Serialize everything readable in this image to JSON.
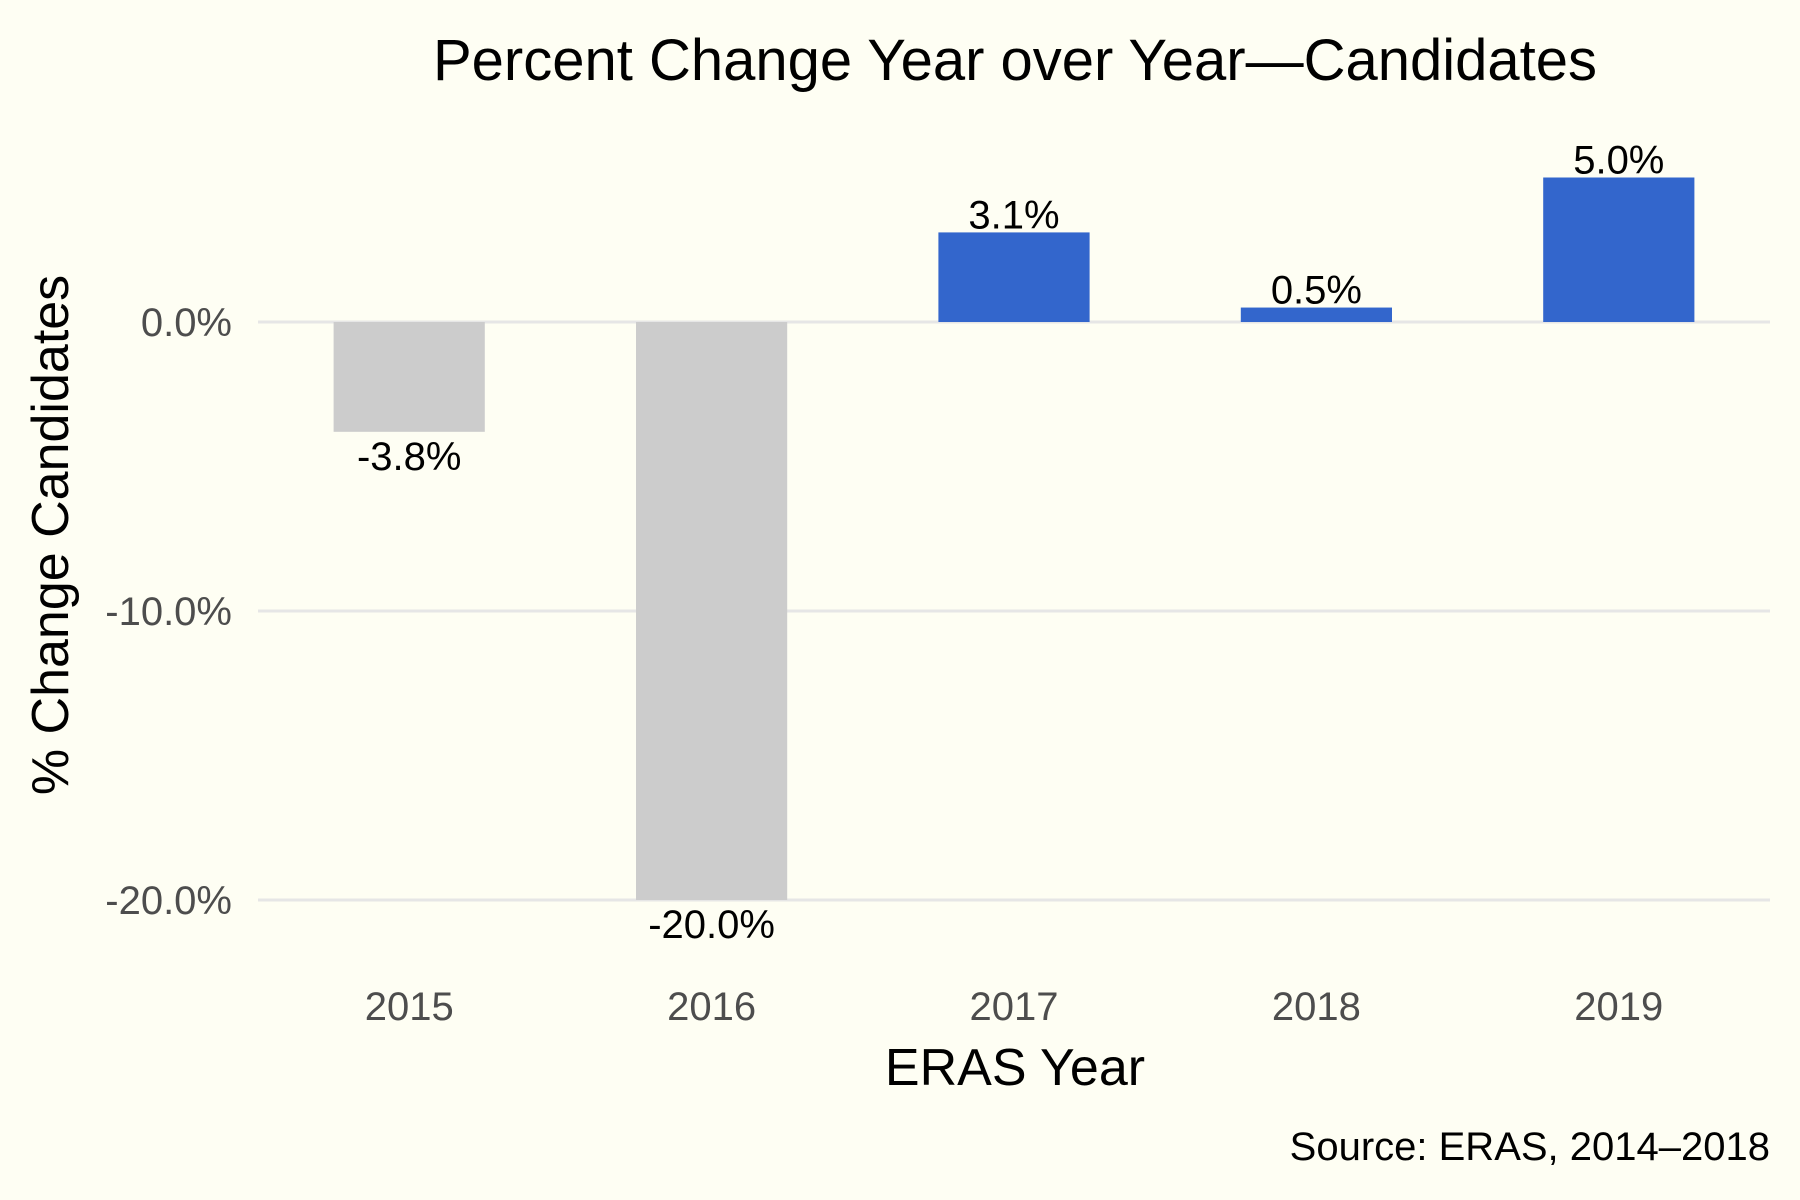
{
  "chart_data": {
    "type": "bar",
    "title": "Percent Change Year over Year—Candidates",
    "xlabel": "ERAS Year",
    "ylabel": "% Change Candidates",
    "caption": "Source: ERAS, 2014–2018",
    "categories": [
      "2015",
      "2016",
      "2017",
      "2018",
      "2019"
    ],
    "values": [
      -3.8,
      -20.0,
      3.1,
      0.5,
      5.0
    ],
    "value_labels": [
      "-3.8%",
      "-20.0%",
      "3.1%",
      "0.5%",
      "5.0%"
    ],
    "ylim": [
      -22,
      6.5
    ],
    "y_ticks": [
      0,
      -10,
      -20
    ],
    "y_tick_labels": [
      "0.0%",
      "-10.0%",
      "-20.0%"
    ],
    "grid": true,
    "legend": "none",
    "colors": {
      "positive": "#3366cc",
      "negative": "#cccccc",
      "background": "#fefef3",
      "grid": "#e6e6e6"
    }
  }
}
